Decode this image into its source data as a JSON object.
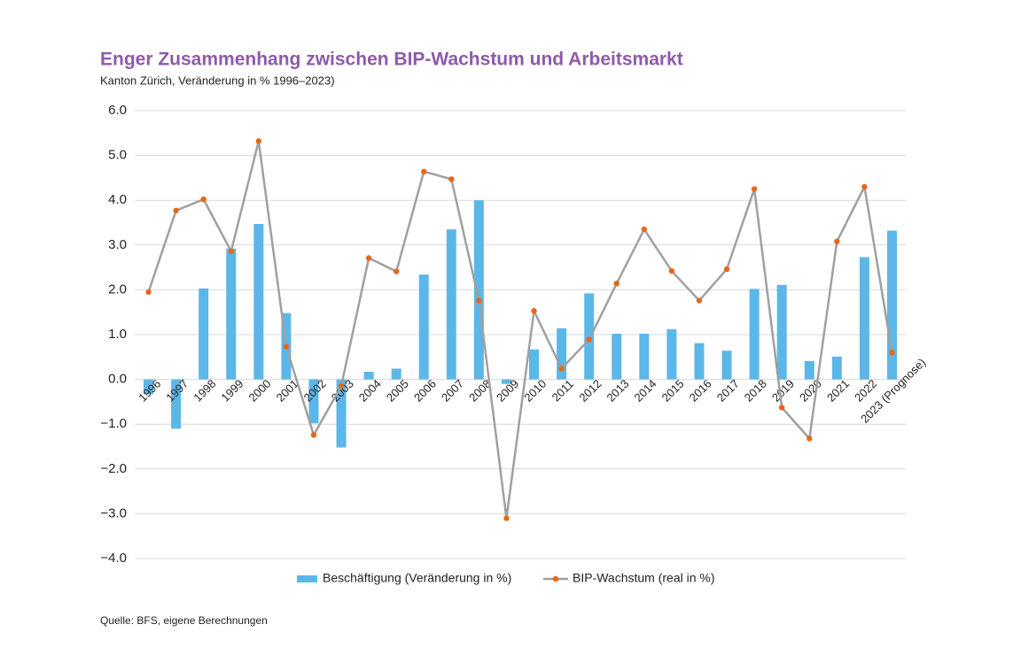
{
  "chart_data": {
    "type": "bar-line",
    "title": "Enger Zusammenhang zwischen BIP-Wachstum und Arbeitsmarkt",
    "subtitle": "Kanton Zürich, Veränderung in % 1996–2023)",
    "source": "Quelle: BFS, eigene Berechnungen",
    "categories": [
      "1996",
      "1997",
      "1998",
      "1999",
      "2000",
      "2001",
      "2002",
      "2003",
      "2004",
      "2005",
      "2006",
      "2007",
      "2008",
      "2009",
      "2010",
      "2011",
      "2012",
      "2013",
      "2014",
      "2015",
      "2016",
      "2017",
      "2018",
      "2019",
      "2020",
      "2021",
      "2022",
      "2023 (Prognose)"
    ],
    "series": [
      {
        "name": "Beschäftigung (Veränderung in %)",
        "type": "bar",
        "color": "#5bb7e8",
        "values": [
          -0.33,
          -1.1,
          2.03,
          2.92,
          3.47,
          1.48,
          -0.98,
          -1.52,
          0.17,
          0.24,
          2.34,
          3.35,
          4.0,
          -0.1,
          0.67,
          1.14,
          1.92,
          1.02,
          1.02,
          1.12,
          0.81,
          0.64,
          2.02,
          2.11,
          0.41,
          0.51,
          2.73,
          3.32
        ]
      },
      {
        "name": "BIP-Wachstum (real in %)",
        "type": "line",
        "color": "#a0a0a0",
        "marker_color": "#e8671a",
        "values": [
          1.95,
          3.77,
          4.02,
          2.86,
          5.32,
          0.73,
          -1.24,
          -0.15,
          2.71,
          2.41,
          4.64,
          4.47,
          1.76,
          -3.1,
          1.53,
          0.24,
          0.89,
          2.14,
          3.35,
          2.42,
          1.76,
          2.46,
          4.25,
          -0.63,
          -1.32,
          3.08,
          4.3,
          0.6
        ]
      }
    ],
    "ylim": [
      -4,
      6
    ],
    "yticks": [
      {
        "value": -4,
        "label": "−4.0"
      },
      {
        "value": -3,
        "label": "−3.0"
      },
      {
        "value": -2,
        "label": "−2.0"
      },
      {
        "value": -1,
        "label": "−1.0"
      },
      {
        "value": 0,
        "label": "0.0"
      },
      {
        "value": 1,
        "label": "1.0"
      },
      {
        "value": 2,
        "label": "2.0"
      },
      {
        "value": 3,
        "label": "3.0"
      },
      {
        "value": 4,
        "label": "4.0"
      },
      {
        "value": 5,
        "label": "5.0"
      },
      {
        "value": 6,
        "label": "6.0"
      }
    ],
    "grid": true
  }
}
